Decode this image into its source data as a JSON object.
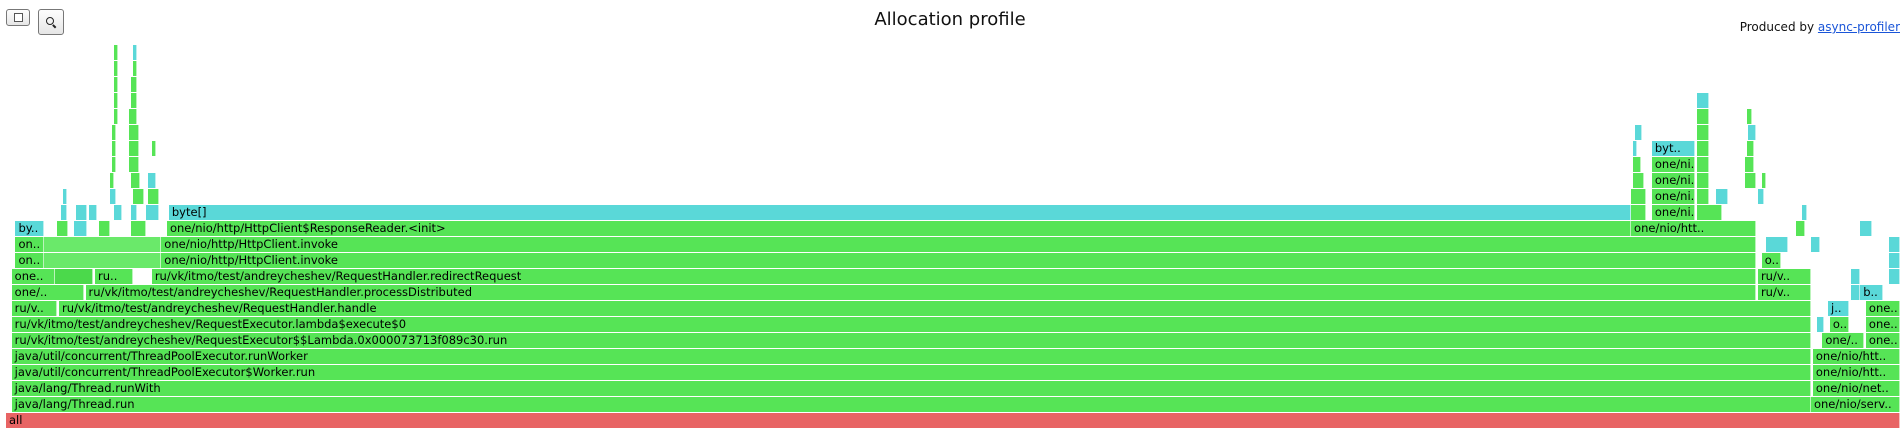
{
  "page": {
    "title": "Allocation profile",
    "produced_by_prefix": "Produced by ",
    "produced_by_link": "async-profiler",
    "reverse_icon": "square-icon",
    "search_icon": "magnifier-icon"
  },
  "colors": {
    "root": "#e86464",
    "green": "#56e456",
    "green_dark": "#4bd94b",
    "green_light": "#6ae96a",
    "cyan": "#5ad8d8"
  },
  "frames_note": "depth 0 = bottom row; columns describe left edge and width in the profile in sample percent",
  "frames": [
    {
      "d": 0,
      "x": 0.0,
      "w": 100.0,
      "c": "root",
      "t": "all"
    },
    {
      "d": 1,
      "x": 0.3,
      "w": 95.0,
      "c": "green",
      "t": "java/lang/Thread.run"
    },
    {
      "d": 1,
      "x": 95.3,
      "w": 4.7,
      "c": "green",
      "t": "one/nio/serv.."
    },
    {
      "d": 2,
      "x": 0.3,
      "w": 95.0,
      "c": "green",
      "t": "java/lang/Thread.runWith"
    },
    {
      "d": 2,
      "x": 95.4,
      "w": 4.6,
      "c": "green",
      "t": "one/nio/net.."
    },
    {
      "d": 3,
      "x": 0.3,
      "w": 95.0,
      "c": "green",
      "t": "java/util/concurrent/ThreadPoolExecutor$Worker.run"
    },
    {
      "d": 3,
      "x": 95.4,
      "w": 4.6,
      "c": "green",
      "t": "one/nio/htt.."
    },
    {
      "d": 4,
      "x": 0.3,
      "w": 95.0,
      "c": "green",
      "t": "java/util/concurrent/ThreadPoolExecutor.runWorker"
    },
    {
      "d": 4,
      "x": 95.4,
      "w": 4.6,
      "c": "green",
      "t": "one/nio/htt.."
    },
    {
      "d": 5,
      "x": 0.3,
      "w": 95.0,
      "c": "green",
      "t": "ru/vk/itmo/test/andreycheshev/RequestExecutor$$Lambda.0x000073713f089c30.run"
    },
    {
      "d": 5,
      "x": 95.9,
      "w": 2.2,
      "c": "green",
      "t": "one/.."
    },
    {
      "d": 5,
      "x": 98.2,
      "w": 1.8,
      "c": "green",
      "t": "one.."
    },
    {
      "d": 6,
      "x": 0.3,
      "w": 95.0,
      "c": "green",
      "t": "ru/vk/itmo/test/andreycheshev/RequestExecutor.lambda$execute$0"
    },
    {
      "d": 6,
      "x": 95.6,
      "w": 0.4,
      "c": "cyan",
      "t": ""
    },
    {
      "d": 6,
      "x": 96.3,
      "w": 1.0,
      "c": "green",
      "t": "o.."
    },
    {
      "d": 6,
      "x": 98.2,
      "w": 1.8,
      "c": "green",
      "t": "one.."
    },
    {
      "d": 7,
      "x": 0.3,
      "w": 2.4,
      "c": "green",
      "t": "ru/v.."
    },
    {
      "d": 7,
      "x": 2.8,
      "w": 92.5,
      "c": "green",
      "t": "ru/vk/itmo/test/andreycheshev/RequestHandler.handle"
    },
    {
      "d": 7,
      "x": 96.2,
      "w": 1.1,
      "c": "cyan",
      "t": "j.."
    },
    {
      "d": 7,
      "x": 98.2,
      "w": 1.8,
      "c": "green",
      "t": "one.."
    },
    {
      "d": 8,
      "x": 0.3,
      "w": 3.8,
      "c": "green",
      "t": "one/.."
    },
    {
      "d": 8,
      "x": 4.2,
      "w": 88.2,
      "c": "green",
      "t": "ru/vk/itmo/test/andreycheshev/RequestHandler.processDistributed"
    },
    {
      "d": 8,
      "x": 92.5,
      "w": 2.8,
      "c": "green",
      "t": "ru/v.."
    },
    {
      "d": 8,
      "x": 97.4,
      "w": 0.5,
      "c": "cyan",
      "t": ""
    },
    {
      "d": 8,
      "x": 97.9,
      "w": 1.2,
      "c": "cyan",
      "t": "b.."
    },
    {
      "d": 9,
      "x": 0.3,
      "w": 2.3,
      "c": "green",
      "t": "one.."
    },
    {
      "d": 9,
      "x": 2.6,
      "w": 2.0,
      "c": "green_dark",
      "t": ""
    },
    {
      "d": 9,
      "x": 4.7,
      "w": 2.0,
      "c": "green",
      "t": "ru.."
    },
    {
      "d": 9,
      "x": 7.7,
      "w": 84.7,
      "c": "green",
      "t": "ru/vk/itmo/test/andreycheshev/RequestHandler.redirectRequest"
    },
    {
      "d": 9,
      "x": 92.5,
      "w": 2.8,
      "c": "green",
      "t": "ru/v.."
    },
    {
      "d": 9,
      "x": 97.4,
      "w": 0.5,
      "c": "cyan",
      "t": ""
    },
    {
      "d": 9,
      "x": 99.4,
      "w": 0.6,
      "c": "cyan",
      "t": ""
    },
    {
      "d": 10,
      "x": 0.5,
      "w": 1.5,
      "c": "green",
      "t": "on.."
    },
    {
      "d": 10,
      "x": 2.0,
      "w": 6.2,
      "c": "green_light",
      "t": ""
    },
    {
      "d": 10,
      "x": 8.2,
      "w": 84.2,
      "c": "green",
      "t": "one/nio/http/HttpClient.invoke"
    },
    {
      "d": 10,
      "x": 92.7,
      "w": 1.0,
      "c": "green",
      "t": "o.."
    },
    {
      "d": 10,
      "x": 99.4,
      "w": 0.6,
      "c": "cyan",
      "t": ""
    },
    {
      "d": 11,
      "x": 0.5,
      "w": 1.5,
      "c": "green",
      "t": "on.."
    },
    {
      "d": 11,
      "x": 2.0,
      "w": 6.2,
      "c": "green_light",
      "t": ""
    },
    {
      "d": 11,
      "x": 8.2,
      "w": 84.2,
      "c": "green",
      "t": "one/nio/http/HttpClient.invoke"
    },
    {
      "d": 11,
      "x": 92.9,
      "w": 1.2,
      "c": "cyan",
      "t": ""
    },
    {
      "d": 11,
      "x": 95.3,
      "w": 0.5,
      "c": "cyan",
      "t": ""
    },
    {
      "d": 11,
      "x": 99.4,
      "w": 0.6,
      "c": "cyan",
      "t": ""
    },
    {
      "d": 12,
      "x": 0.5,
      "w": 1.5,
      "c": "cyan",
      "t": "by.."
    },
    {
      "d": 12,
      "x": 2.7,
      "w": 0.6,
      "c": "green",
      "t": ""
    },
    {
      "d": 12,
      "x": 3.6,
      "w": 0.7,
      "c": "cyan",
      "t": ""
    },
    {
      "d": 12,
      "x": 4.9,
      "w": 0.6,
      "c": "green",
      "t": ""
    },
    {
      "d": 12,
      "x": 6.6,
      "w": 0.8,
      "c": "green",
      "t": ""
    },
    {
      "d": 12,
      "x": 8.5,
      "w": 77.3,
      "c": "green",
      "t": "one/nio/http/HttpClient$ResponseReader.<init>"
    },
    {
      "d": 12,
      "x": 85.8,
      "w": 6.6,
      "c": "green",
      "t": "one/nio/htt.."
    },
    {
      "d": 12,
      "x": 94.5,
      "w": 0.5,
      "c": "green",
      "t": ""
    },
    {
      "d": 12,
      "x": 97.9,
      "w": 0.6,
      "c": "cyan",
      "t": ""
    },
    {
      "d": 13,
      "x": 2.9,
      "w": 0.3,
      "c": "cyan",
      "t": ""
    },
    {
      "d": 13,
      "x": 3.7,
      "w": 0.6,
      "c": "cyan",
      "t": ""
    },
    {
      "d": 13,
      "x": 4.4,
      "w": 0.4,
      "c": "cyan",
      "t": ""
    },
    {
      "d": 13,
      "x": 5.7,
      "w": 0.4,
      "c": "cyan",
      "t": ""
    },
    {
      "d": 13,
      "x": 6.6,
      "w": 0.3,
      "c": "cyan",
      "t": ""
    },
    {
      "d": 13,
      "x": 7.4,
      "w": 0.7,
      "c": "cyan",
      "t": ""
    },
    {
      "d": 13,
      "x": 8.6,
      "w": 77.2,
      "c": "cyan",
      "t": "byte[]"
    },
    {
      "d": 13,
      "x": 85.8,
      "w": 0.8,
      "c": "green",
      "t": ""
    },
    {
      "d": 13,
      "x": 86.9,
      "w": 2.3,
      "c": "green",
      "t": "one/ni.."
    },
    {
      "d": 13,
      "x": 89.3,
      "w": 1.3,
      "c": "green",
      "t": ""
    },
    {
      "d": 13,
      "x": 94.8,
      "w": 0.3,
      "c": "cyan",
      "t": ""
    },
    {
      "d": 14,
      "x": 3.0,
      "w": 0.2,
      "c": "cyan",
      "t": ""
    },
    {
      "d": 14,
      "x": 5.5,
      "w": 0.3,
      "c": "cyan",
      "t": ""
    },
    {
      "d": 14,
      "x": 6.7,
      "w": 0.6,
      "c": "green",
      "t": ""
    },
    {
      "d": 14,
      "x": 7.5,
      "w": 0.6,
      "c": "green",
      "t": ""
    },
    {
      "d": 14,
      "x": 85.8,
      "w": 0.8,
      "c": "green",
      "t": ""
    },
    {
      "d": 14,
      "x": 86.9,
      "w": 2.3,
      "c": "green",
      "t": "one/ni.."
    },
    {
      "d": 14,
      "x": 89.3,
      "w": 0.6,
      "c": "green",
      "t": ""
    },
    {
      "d": 14,
      "x": 90.3,
      "w": 0.6,
      "c": "cyan",
      "t": ""
    },
    {
      "d": 14,
      "x": 92.5,
      "w": 0.3,
      "c": "cyan",
      "t": ""
    },
    {
      "d": 15,
      "x": 5.5,
      "w": 0.2,
      "c": "green",
      "t": ""
    },
    {
      "d": 15,
      "x": 6.6,
      "w": 0.5,
      "c": "green",
      "t": ""
    },
    {
      "d": 15,
      "x": 7.5,
      "w": 0.4,
      "c": "cyan",
      "t": ""
    },
    {
      "d": 15,
      "x": 85.9,
      "w": 0.6,
      "c": "green",
      "t": ""
    },
    {
      "d": 15,
      "x": 86.9,
      "w": 2.3,
      "c": "green",
      "t": "one/ni.."
    },
    {
      "d": 15,
      "x": 89.3,
      "w": 0.6,
      "c": "green",
      "t": ""
    },
    {
      "d": 15,
      "x": 91.8,
      "w": 0.6,
      "c": "green",
      "t": ""
    },
    {
      "d": 15,
      "x": 92.7,
      "w": 0.2,
      "c": "green",
      "t": ""
    },
    {
      "d": 16,
      "x": 5.6,
      "w": 0.2,
      "c": "green",
      "t": ""
    },
    {
      "d": 16,
      "x": 6.5,
      "w": 0.5,
      "c": "green",
      "t": ""
    },
    {
      "d": 16,
      "x": 85.9,
      "w": 0.4,
      "c": "green",
      "t": ""
    },
    {
      "d": 16,
      "x": 86.9,
      "w": 2.3,
      "c": "green",
      "t": "one/ni.."
    },
    {
      "d": 16,
      "x": 89.3,
      "w": 0.6,
      "c": "green",
      "t": ""
    },
    {
      "d": 16,
      "x": 91.8,
      "w": 0.5,
      "c": "green",
      "t": ""
    },
    {
      "d": 17,
      "x": 5.6,
      "w": 0.2,
      "c": "green",
      "t": ""
    },
    {
      "d": 17,
      "x": 6.5,
      "w": 0.5,
      "c": "green",
      "t": ""
    },
    {
      "d": 17,
      "x": 7.7,
      "w": 0.2,
      "c": "green",
      "t": ""
    },
    {
      "d": 17,
      "x": 85.9,
      "w": 0.2,
      "c": "cyan",
      "t": ""
    },
    {
      "d": 17,
      "x": 86.9,
      "w": 2.3,
      "c": "cyan",
      "t": "byt.."
    },
    {
      "d": 17,
      "x": 89.3,
      "w": 0.6,
      "c": "green",
      "t": ""
    },
    {
      "d": 17,
      "x": 91.9,
      "w": 0.4,
      "c": "green",
      "t": ""
    },
    {
      "d": 18,
      "x": 5.6,
      "w": 0.2,
      "c": "green",
      "t": ""
    },
    {
      "d": 18,
      "x": 6.5,
      "w": 0.5,
      "c": "green",
      "t": ""
    },
    {
      "d": 18,
      "x": 86.0,
      "w": 0.4,
      "c": "cyan",
      "t": ""
    },
    {
      "d": 18,
      "x": 89.3,
      "w": 0.6,
      "c": "green",
      "t": ""
    },
    {
      "d": 18,
      "x": 92.0,
      "w": 0.4,
      "c": "cyan",
      "t": ""
    },
    {
      "d": 19,
      "x": 5.7,
      "w": 0.1,
      "c": "green",
      "t": ""
    },
    {
      "d": 19,
      "x": 6.5,
      "w": 0.4,
      "c": "green",
      "t": ""
    },
    {
      "d": 19,
      "x": 89.3,
      "w": 0.6,
      "c": "green",
      "t": ""
    },
    {
      "d": 19,
      "x": 91.9,
      "w": 0.3,
      "c": "green",
      "t": ""
    },
    {
      "d": 20,
      "x": 5.7,
      "w": 0.1,
      "c": "green",
      "t": ""
    },
    {
      "d": 20,
      "x": 6.6,
      "w": 0.3,
      "c": "green",
      "t": ""
    },
    {
      "d": 20,
      "x": 89.3,
      "w": 0.6,
      "c": "cyan",
      "t": ""
    },
    {
      "d": 21,
      "x": 5.7,
      "w": 0.1,
      "c": "green",
      "t": ""
    },
    {
      "d": 21,
      "x": 6.6,
      "w": 0.3,
      "c": "green",
      "t": ""
    },
    {
      "d": 22,
      "x": 5.7,
      "w": 0.1,
      "c": "green",
      "t": ""
    },
    {
      "d": 22,
      "x": 6.7,
      "w": 0.2,
      "c": "green",
      "t": ""
    },
    {
      "d": 23,
      "x": 5.7,
      "w": 0.1,
      "c": "green",
      "t": ""
    },
    {
      "d": 23,
      "x": 6.7,
      "w": 0.2,
      "c": "cyan",
      "t": ""
    }
  ]
}
